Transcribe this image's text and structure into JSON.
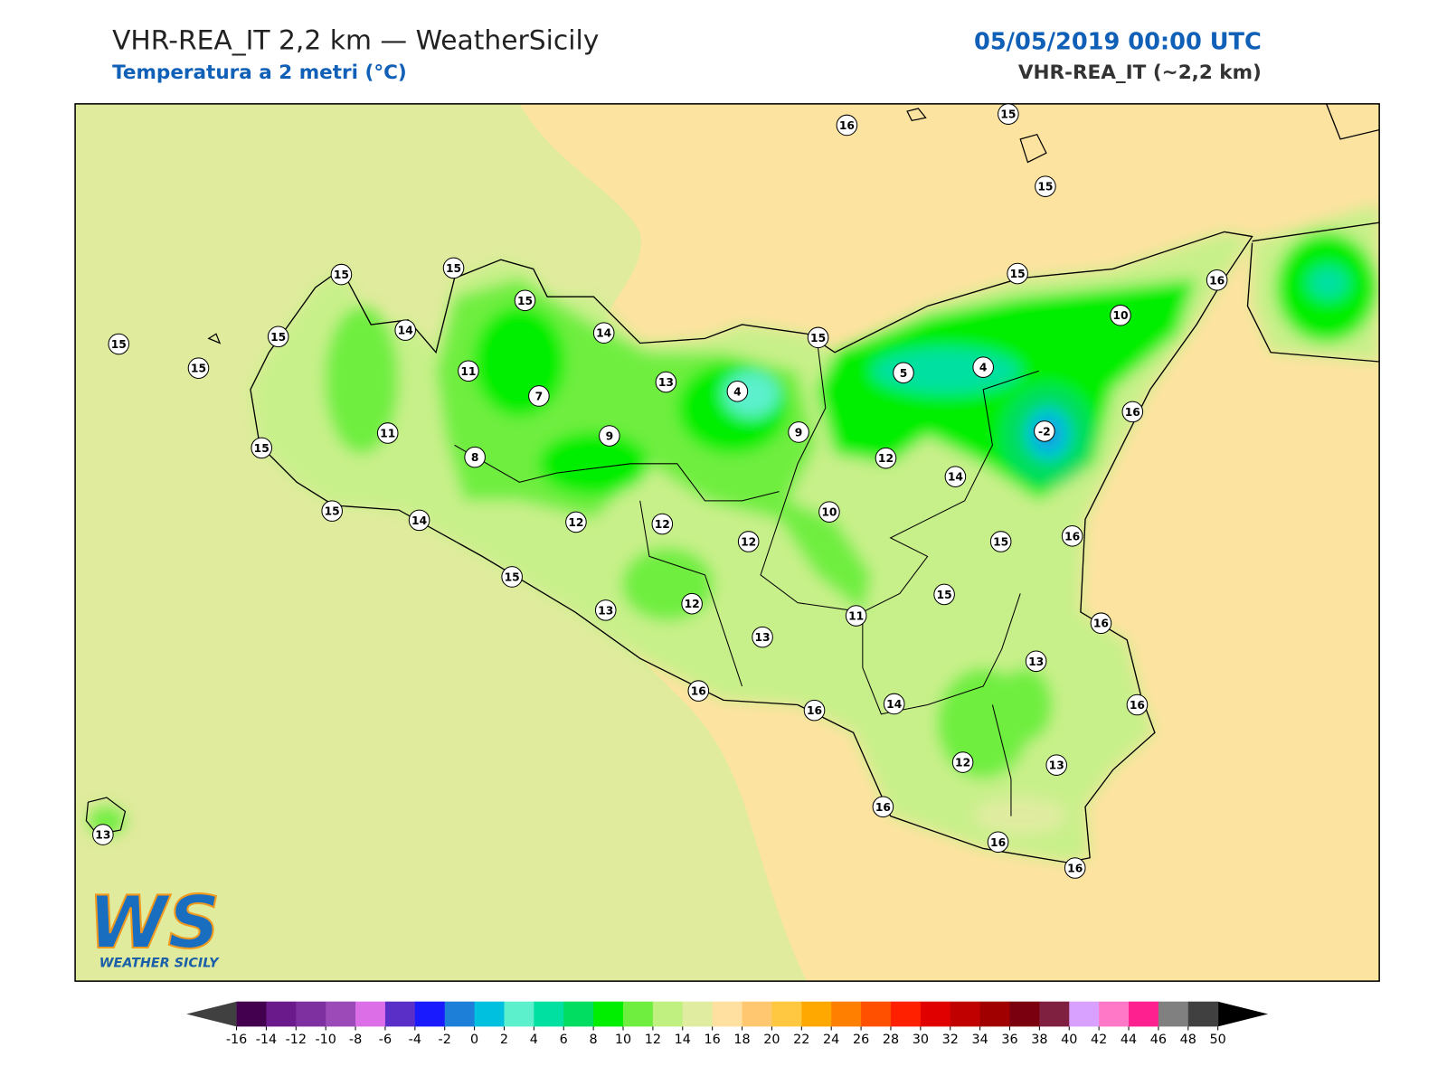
{
  "header": {
    "title": "VHR-REA_IT 2,2 km — WeatherSicily",
    "subtitle": "Temperatura a 2 metri (°C)",
    "datetime": "05/05/2019 00:00 UTC",
    "model": "VHR-REA_IT (~2,2 km)"
  },
  "stations": [
    16,
    15,
    15,
    15,
    15,
    15,
    15,
    15,
    15,
    14,
    14,
    11,
    7,
    13,
    4,
    15,
    5,
    4,
    15,
    10,
    16,
    16,
    -2,
    11,
    15,
    9,
    9,
    8,
    12,
    14,
    15,
    14,
    12,
    12,
    12,
    10,
    15,
    16,
    15,
    15,
    13,
    12,
    11,
    13,
    16,
    13,
    16,
    16,
    14,
    16,
    12,
    13,
    16,
    13,
    16,
    16
  ],
  "colorbar": {
    "ticks": [
      -16,
      -14,
      -12,
      -10,
      -8,
      -6,
      -4,
      -2,
      0,
      2,
      4,
      6,
      8,
      10,
      12,
      14,
      16,
      18,
      20,
      22,
      24,
      26,
      28,
      30,
      32,
      34,
      36,
      38,
      40,
      42,
      44,
      46,
      48,
      50
    ],
    "colors": [
      "#42004f",
      "#6a1a8a",
      "#7e2fa0",
      "#9b4ab8",
      "#dc6ee8",
      "#5a2fc8",
      "#1a1aff",
      "#1e7fd8",
      "#00c0e0",
      "#5cf0cc",
      "#00e0a0",
      "#00dd60",
      "#00ee00",
      "#70ee40",
      "#c0f080",
      "#e0eca0",
      "#ffe0a0",
      "#ffc870",
      "#ffc840",
      "#ffa800",
      "#ff8000",
      "#ff5000",
      "#ff2000",
      "#e00000",
      "#c00000",
      "#a00000",
      "#7a0010",
      "#802040",
      "#d8a0ff",
      "#ff78c8",
      "#ff2090",
      "#808080",
      "#404040"
    ],
    "under_color": "#404040",
    "over_color": "#000000"
  },
  "logo": {
    "mark": "WS",
    "text": "WEATHER SICILY"
  }
}
